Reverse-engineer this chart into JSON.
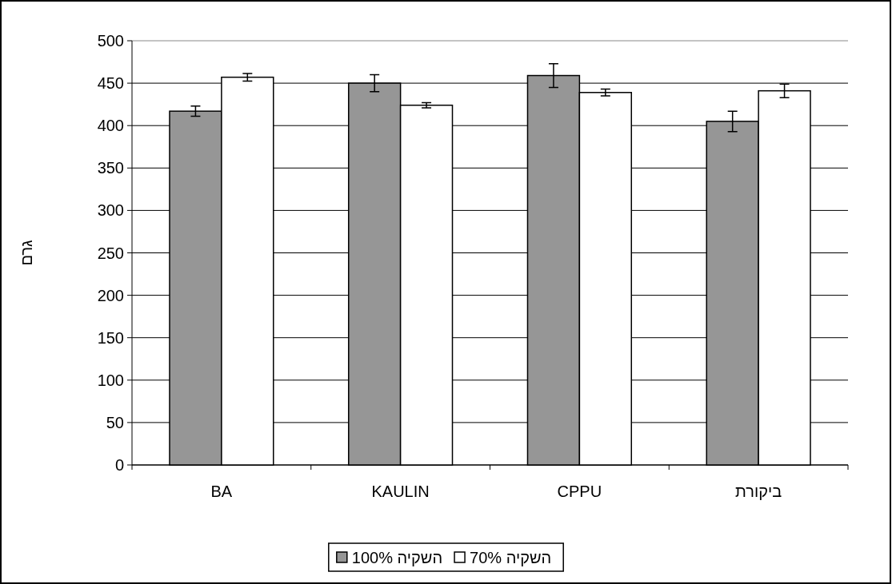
{
  "chart_data": {
    "type": "bar",
    "ylabel": "גרם",
    "categories": [
      "BA",
      "KAULIN",
      "CPPU",
      "ביקורת"
    ],
    "series": [
      {
        "name": "100% השקיה",
        "color": "#969696",
        "values": [
          417,
          450,
          459,
          405
        ],
        "errors": [
          6,
          10,
          14,
          12
        ]
      },
      {
        "name": "70% השקיה",
        "color": "#ffffff",
        "values": [
          457,
          424,
          439,
          441
        ],
        "errors": [
          4.5,
          3,
          4,
          8
        ]
      }
    ],
    "ylim": [
      0,
      500
    ],
    "yticks": [
      0,
      50,
      100,
      150,
      200,
      250,
      300,
      350,
      400,
      450,
      500
    ],
    "grid": "y",
    "legend": "bottom"
  }
}
